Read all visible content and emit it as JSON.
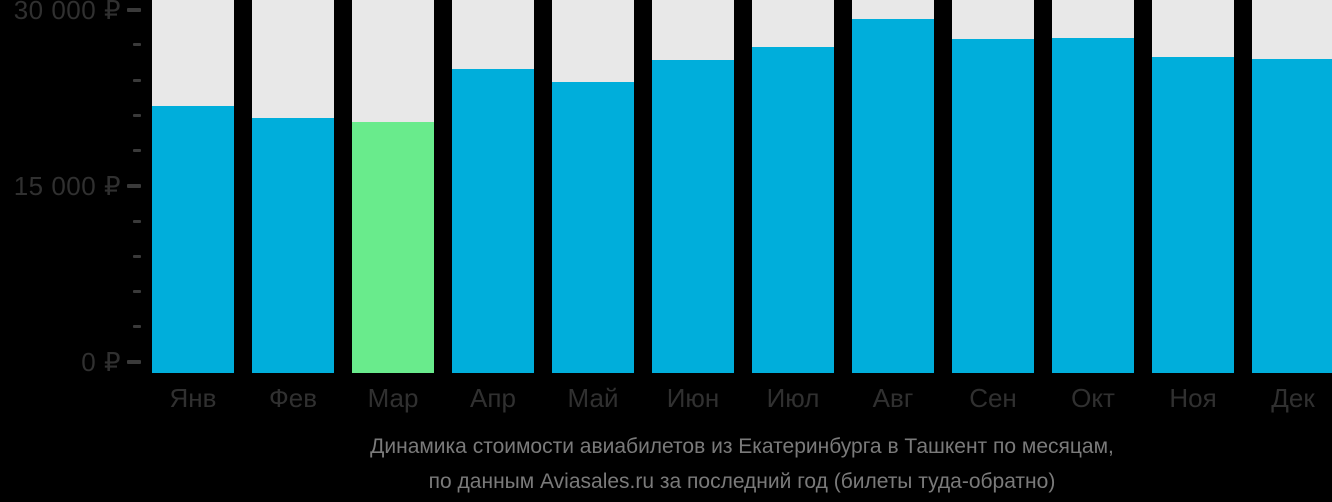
{
  "chart_data": {
    "type": "bar",
    "title": "Динамика стоимости авиабилетов из Екатеринбурга в Ташкент по месяцам,",
    "subtitle": "по данным Aviasales.ru за последний год (билеты туда-обратно)",
    "categories": [
      "Янв",
      "Фев",
      "Мар",
      "Апр",
      "Май",
      "Июн",
      "Июл",
      "Авг",
      "Сен",
      "Окт",
      "Ноя",
      "Дек"
    ],
    "category_ids": [
      "jan",
      "feb",
      "mar",
      "apr",
      "may",
      "jun",
      "jul",
      "aug",
      "sep",
      "oct",
      "nov",
      "dec"
    ],
    "values": [
      21800,
      20800,
      20400,
      24900,
      23800,
      25700,
      26800,
      29200,
      27500,
      27600,
      26000,
      25800
    ],
    "highlight_index": 2,
    "highlight_category": "Мар",
    "ylim": [
      0,
      30000
    ],
    "y_ticks": [
      {
        "label": "30 000 ₽",
        "value": 30000
      },
      {
        "label": "15 000 ₽",
        "value": 15000
      },
      {
        "label": "0 ₽",
        "value": 0
      }
    ],
    "y_minor_tick_step": 3000,
    "grid": "off",
    "legend_position": "none",
    "colors": {
      "bar": "#00AEDB",
      "highlight_bar": "#69EB8C",
      "column_track": "#E8E8E8",
      "background": "#000000",
      "axis_text": "#303030",
      "tick_mark": "#3A3A3A",
      "caption_text": "#7A7A7A"
    }
  }
}
